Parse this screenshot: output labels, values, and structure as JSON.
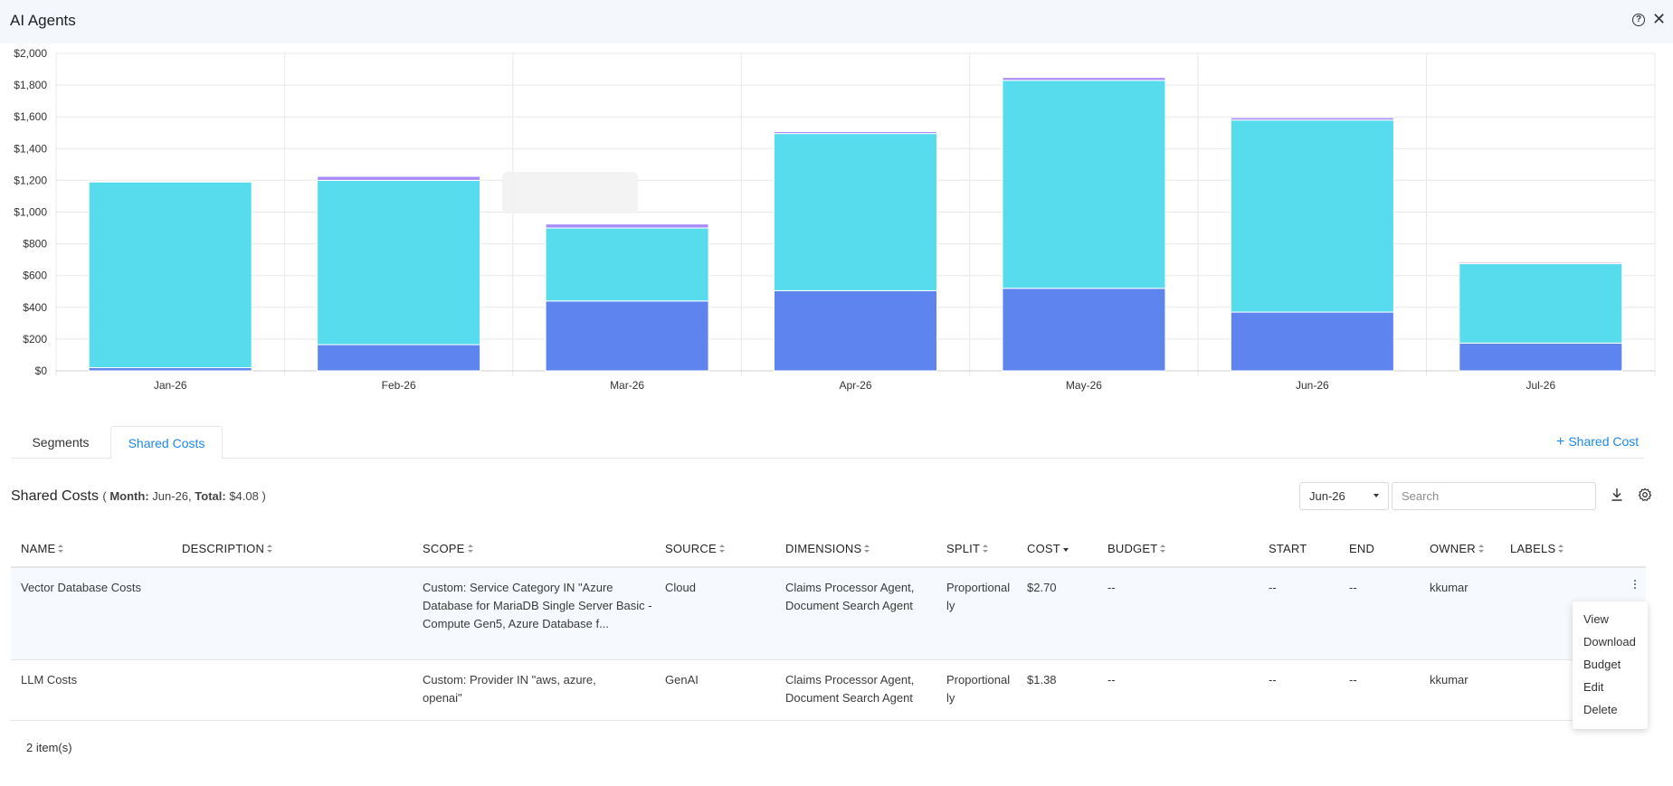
{
  "window": {
    "title": "AI Agents"
  },
  "chart_data": {
    "type": "bar",
    "stacked": true,
    "categories": [
      "Jan-26",
      "Feb-26",
      "Mar-26",
      "Apr-26",
      "May-26",
      "Jun-26",
      "Jul-26"
    ],
    "series": [
      {
        "color": "#5e84f0",
        "values": [
          20,
          165,
          440,
          505,
          520,
          370,
          175
        ]
      },
      {
        "color": "#56dced",
        "values": [
          1170,
          1035,
          460,
          990,
          1310,
          1210,
          500
        ]
      },
      {
        "color": "#a78bfa",
        "values": [
          5,
          25,
          25,
          12,
          18,
          15,
          8
        ]
      }
    ],
    "yticks": [
      "$0",
      "$200",
      "$400",
      "$600",
      "$800",
      "$1,000",
      "$1,200",
      "$1,400",
      "$1,600",
      "$1,800",
      "$2,000"
    ],
    "ylim": [
      0,
      2000
    ],
    "grid": true
  },
  "tabs": [
    {
      "label": "Segments",
      "active": false
    },
    {
      "label": "Shared Costs",
      "active": true
    }
  ],
  "add_shared_cost_label": "Shared Cost",
  "section": {
    "title": "Shared Costs",
    "month_label": "Month:",
    "month_value": "Jun-26,",
    "total_label": "Total:",
    "total_value": "$4.08"
  },
  "month_select": {
    "value": "Jun-26"
  },
  "search": {
    "placeholder": "Search"
  },
  "table": {
    "columns": [
      "NAME",
      "DESCRIPTION",
      "SCOPE",
      "SOURCE",
      "DIMENSIONS",
      "SPLIT",
      "COST",
      "BUDGET",
      "START",
      "END",
      "OWNER",
      "LABELS"
    ],
    "rows": [
      {
        "name": "Vector Database Costs",
        "description": "",
        "scope": "Custom: Service Category IN \"Azure Database for MariaDB Single Server Basic - Compute Gen5, Azure Database f...",
        "source": "Cloud",
        "dimensions": "Claims Processor Agent, Document Search Agent",
        "split": "Proportionally",
        "cost": "$2.70",
        "budget": "--",
        "start": "--",
        "end": "--",
        "owner": "kkumar",
        "labels": ""
      },
      {
        "name": "LLM Costs",
        "description": "",
        "scope": "Custom: Provider IN \"aws, azure, openai\"",
        "source": "GenAI",
        "dimensions": "Claims Processor Agent, Document Search Agent",
        "split": "Proportionally",
        "cost": "$1.38",
        "budget": "--",
        "start": "--",
        "end": "--",
        "owner": "kkumar",
        "labels": ""
      }
    ]
  },
  "footer": {
    "count": "2 item(s)"
  },
  "context_menu": {
    "items": [
      "View",
      "Download",
      "Budget",
      "Edit",
      "Delete"
    ]
  }
}
